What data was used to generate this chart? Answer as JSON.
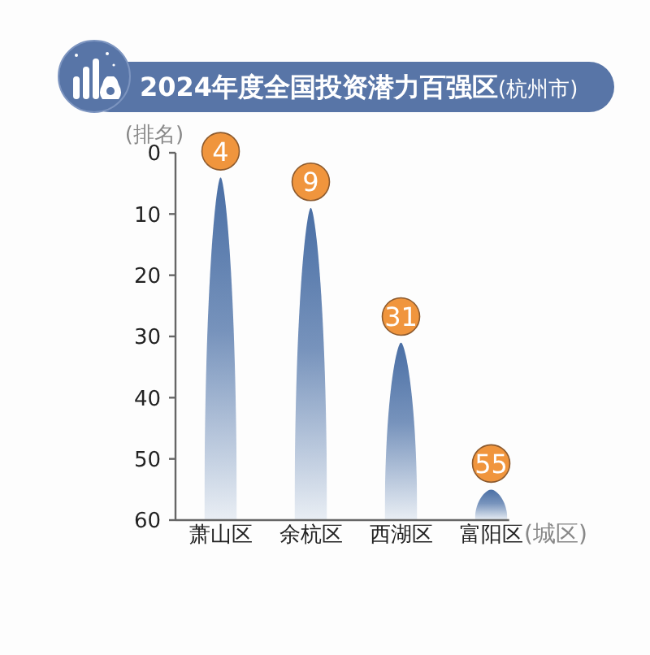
{
  "chart_data": {
    "type": "bar",
    "title": "2024年度全国投资潜力百强区",
    "subtitle": "(杭州市)",
    "ylabel": "(排名)",
    "xlabel": "(城区)",
    "categories": [
      "萧山区",
      "余杭区",
      "西湖区",
      "富阳区"
    ],
    "base": [
      60,
      60,
      60,
      60
    ],
    "values": [
      -56,
      -51,
      -29,
      -5
    ],
    "value_labels": [
      "4",
      "9",
      "31",
      "55"
    ],
    "color": "#4a6fa5",
    "ylim": [
      60,
      0
    ],
    "yticks": [
      0,
      10,
      20,
      30,
      40,
      50,
      60
    ]
  }
}
